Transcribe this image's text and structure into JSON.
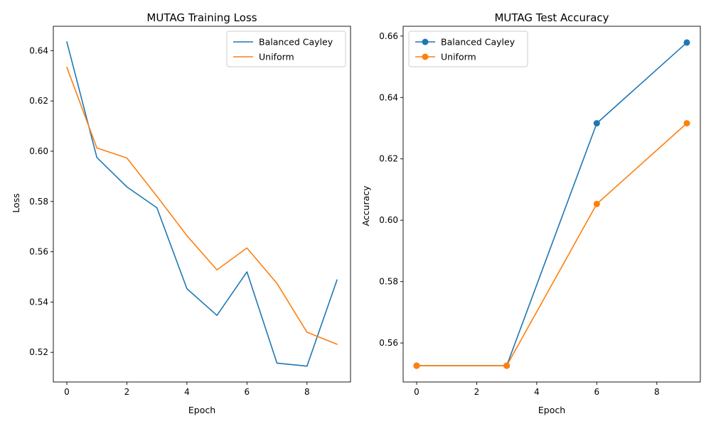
{
  "colors": {
    "series_0": "#1f77b4",
    "series_1": "#ff7f0e",
    "axes": "#000000",
    "legend_border": "#cccccc"
  },
  "chart_data": [
    {
      "type": "line",
      "title": "MUTAG Training Loss",
      "xlabel": "Epoch",
      "ylabel": "Loss",
      "x": [
        0,
        1,
        2,
        3,
        4,
        5,
        6,
        7,
        8,
        9
      ],
      "xlim": [
        -0.45,
        9.45
      ],
      "ylim": [
        0.5082,
        0.6497
      ],
      "xticks": [
        0,
        2,
        4,
        6,
        8
      ],
      "yticks": [
        0.52,
        0.54,
        0.56,
        0.58,
        0.6,
        0.62,
        0.64
      ],
      "xtick_labels": [
        "0",
        "2",
        "4",
        "6",
        "8"
      ],
      "ytick_labels": [
        "0.52",
        "0.54",
        "0.56",
        "0.58",
        "0.60",
        "0.62",
        "0.64"
      ],
      "markers": false,
      "grid": false,
      "legend_position": "upper right",
      "series": [
        {
          "name": "Balanced Cayley",
          "values": [
            0.6435,
            0.5975,
            0.5858,
            0.5775,
            0.5453,
            0.5347,
            0.552,
            0.5157,
            0.5145,
            0.5488
          ]
        },
        {
          "name": "Uniform",
          "values": [
            0.6334,
            0.6013,
            0.5973,
            0.5821,
            0.5664,
            0.5528,
            0.5615,
            0.5474,
            0.528,
            0.5232
          ]
        }
      ]
    },
    {
      "type": "line",
      "title": "MUTAG Test Accuracy",
      "xlabel": "Epoch",
      "ylabel": "Accuracy",
      "x": [
        0,
        3,
        6,
        9
      ],
      "xlim": [
        -0.45,
        9.45
      ],
      "ylim": [
        0.5473,
        0.6632
      ],
      "xticks": [
        0,
        2,
        4,
        6,
        8
      ],
      "yticks": [
        0.56,
        0.58,
        0.6,
        0.62,
        0.64,
        0.66
      ],
      "xtick_labels": [
        "0",
        "2",
        "4",
        "6",
        "8"
      ],
      "ytick_labels": [
        "0.56",
        "0.58",
        "0.60",
        "0.62",
        "0.64",
        "0.66"
      ],
      "markers": true,
      "grid": false,
      "legend_position": "upper left",
      "series": [
        {
          "name": "Balanced Cayley",
          "values": [
            0.5526,
            0.5526,
            0.6316,
            0.6579
          ]
        },
        {
          "name": "Uniform",
          "values": [
            0.5526,
            0.5526,
            0.6053,
            0.6316
          ]
        }
      ]
    }
  ]
}
